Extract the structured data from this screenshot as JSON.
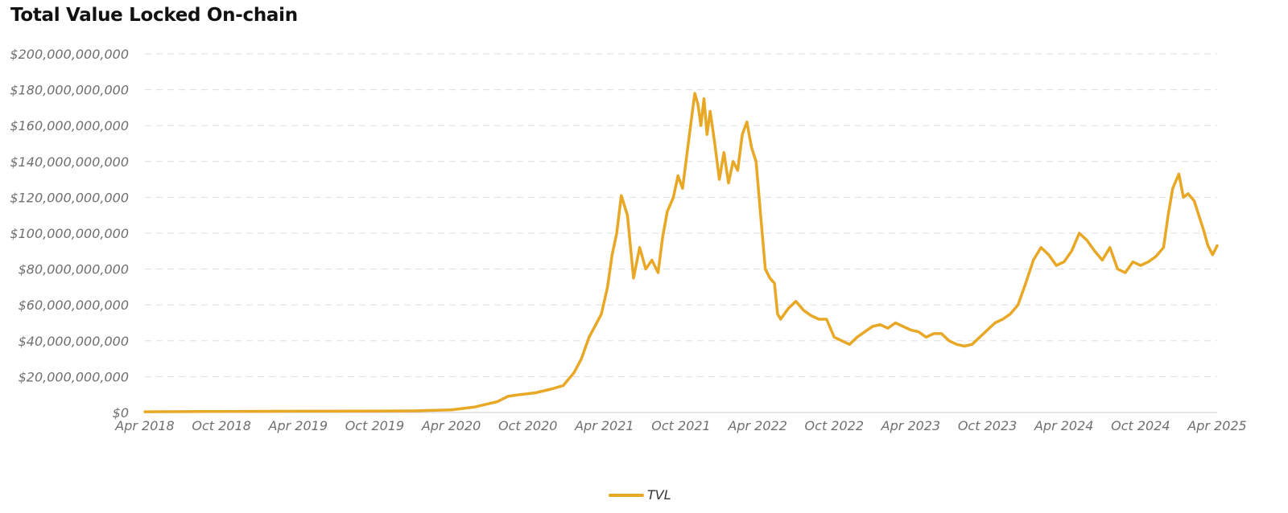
{
  "colors": {
    "series": "#E8A825",
    "grid": "#dddddd",
    "axis": "#cccccc",
    "tick_text": "#6f6f6f"
  },
  "chart_data": {
    "type": "line",
    "title": "Total Value Locked On-chain",
    "xlabel": "",
    "ylabel": "",
    "grid": true,
    "legend_position": "bottom-center",
    "x_range": [
      2018.25,
      2025.25
    ],
    "ylim": [
      0,
      200000000000
    ],
    "y_ticks": [
      0,
      20000000000,
      40000000000,
      60000000000,
      80000000000,
      100000000000,
      120000000000,
      140000000000,
      160000000000,
      180000000000,
      200000000000
    ],
    "y_tick_labels": [
      "$0",
      "$20,000,000,000",
      "$40,000,000,000",
      "$60,000,000,000",
      "$80,000,000,000",
      "$100,000,000,000",
      "$120,000,000,000",
      "$140,000,000,000",
      "$160,000,000,000",
      "$180,000,000,000",
      "$200,000,000,000"
    ],
    "x_ticks": [
      2018.25,
      2018.75,
      2019.25,
      2019.75,
      2020.25,
      2020.75,
      2021.25,
      2021.75,
      2022.25,
      2022.75,
      2023.25,
      2023.75,
      2024.25,
      2024.75,
      2025.25
    ],
    "x_tick_labels": [
      "Apr 2018",
      "Oct 2018",
      "Apr 2019",
      "Oct 2019",
      "Apr 2020",
      "Oct 2020",
      "Apr 2021",
      "Oct 2021",
      "Apr 2022",
      "Oct 2022",
      "Apr 2023",
      "Oct 2023",
      "Apr 2024",
      "Oct 2024",
      "Apr 2025"
    ],
    "series": [
      {
        "name": "TVL",
        "color": "#E8A825",
        "x": [
          2018.25,
          2018.75,
          2019.25,
          2019.75,
          2020.0,
          2020.25,
          2020.4,
          2020.55,
          2020.62,
          2020.7,
          2020.8,
          2020.9,
          2020.98,
          2021.05,
          2021.1,
          2021.15,
          2021.2,
          2021.23,
          2021.27,
          2021.3,
          2021.33,
          2021.36,
          2021.4,
          2021.44,
          2021.48,
          2021.52,
          2021.56,
          2021.6,
          2021.63,
          2021.66,
          2021.7,
          2021.73,
          2021.76,
          2021.79,
          2021.82,
          2021.84,
          2021.86,
          2021.88,
          2021.9,
          2021.92,
          2021.94,
          2021.97,
          2022.0,
          2022.03,
          2022.06,
          2022.09,
          2022.12,
          2022.15,
          2022.18,
          2022.21,
          2022.24,
          2022.27,
          2022.3,
          2022.33,
          2022.36,
          2022.38,
          2022.4,
          2022.45,
          2022.5,
          2022.55,
          2022.6,
          2022.65,
          2022.7,
          2022.75,
          2022.8,
          2022.85,
          2022.9,
          2022.95,
          2023.0,
          2023.05,
          2023.1,
          2023.15,
          2023.2,
          2023.25,
          2023.3,
          2023.35,
          2023.4,
          2023.45,
          2023.5,
          2023.55,
          2023.6,
          2023.65,
          2023.7,
          2023.75,
          2023.8,
          2023.85,
          2023.9,
          2023.95,
          2024.0,
          2024.05,
          2024.1,
          2024.15,
          2024.2,
          2024.25,
          2024.3,
          2024.35,
          2024.4,
          2024.45,
          2024.5,
          2024.55,
          2024.6,
          2024.65,
          2024.7,
          2024.75,
          2024.8,
          2024.85,
          2024.9,
          2024.93,
          2024.96,
          2025.0,
          2025.03,
          2025.06,
          2025.1,
          2025.13,
          2025.16,
          2025.19,
          2025.22,
          2025.25
        ],
        "y": [
          400000000.0,
          600000000.0,
          700000000.0,
          800000000.0,
          900000000.0,
          1500000000.0,
          3000000000.0,
          6000000000.0,
          9000000000.0,
          10000000000.0,
          11000000000.0,
          13000000000.0,
          15000000000.0,
          22000000000.0,
          30000000000.0,
          42000000000.0,
          50000000000.0,
          55000000000.0,
          70000000000.0,
          88000000000.0,
          100000000000.0,
          121000000000.0,
          110000000000.0,
          75000000000.0,
          92000000000.0,
          80000000000.0,
          85000000000.0,
          78000000000.0,
          98000000000.0,
          112000000000.0,
          120000000000.0,
          132000000000.0,
          125000000000.0,
          145000000000.0,
          165000000000.0,
          178000000000.0,
          172000000000.0,
          160000000000.0,
          175000000000.0,
          155000000000.0,
          168000000000.0,
          150000000000.0,
          130000000000.0,
          145000000000.0,
          128000000000.0,
          140000000000.0,
          135000000000.0,
          155000000000.0,
          162000000000.0,
          148000000000.0,
          140000000000.0,
          110000000000.0,
          80000000000.0,
          75000000000.0,
          72000000000.0,
          55000000000.0,
          52000000000.0,
          58000000000.0,
          62000000000.0,
          57000000000.0,
          54000000000.0,
          52000000000.0,
          52000000000.0,
          42000000000.0,
          40000000000.0,
          38000000000.0,
          42000000000.0,
          45000000000.0,
          48000000000.0,
          49000000000.0,
          47000000000.0,
          50000000000.0,
          48000000000.0,
          46000000000.0,
          45000000000.0,
          42000000000.0,
          44000000000.0,
          44000000000.0,
          40000000000.0,
          38000000000.0,
          37000000000.0,
          38000000000.0,
          42000000000.0,
          46000000000.0,
          50000000000.0,
          52000000000.0,
          55000000000.0,
          60000000000.0,
          72000000000.0,
          85000000000.0,
          92000000000.0,
          88000000000.0,
          82000000000.0,
          84000000000.0,
          90000000000.0,
          100000000000.0,
          96000000000.0,
          90000000000.0,
          85000000000.0,
          92000000000.0,
          80000000000.0,
          78000000000.0,
          84000000000.0,
          82000000000.0,
          84000000000.0,
          87000000000.0,
          92000000000.0,
          110000000000.0,
          125000000000.0,
          133000000000.0,
          120000000000.0,
          122000000000.0,
          118000000000.0,
          110000000000.0,
          102000000000.0,
          93000000000.0,
          88000000000.0,
          93000000000.0
        ]
      }
    ]
  }
}
